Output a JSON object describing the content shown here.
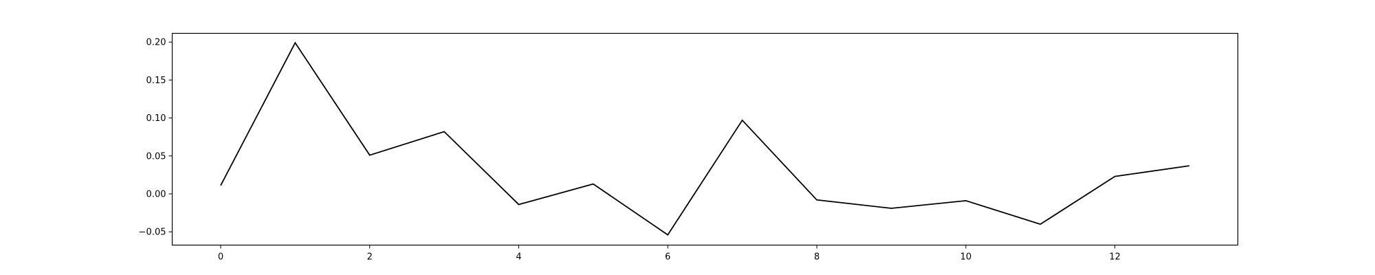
{
  "chart_data": {
    "type": "line",
    "title": "",
    "xlabel": "",
    "ylabel": "",
    "xlim": [
      -0.65,
      13.65
    ],
    "ylim": [
      -0.0675,
      0.2115
    ],
    "xticks": [
      0,
      2,
      4,
      6,
      8,
      10,
      12
    ],
    "xtick_labels": [
      "0",
      "2",
      "4",
      "6",
      "8",
      "10",
      "12"
    ],
    "yticks": [
      -0.05,
      0.0,
      0.05,
      0.1,
      0.15,
      0.2
    ],
    "ytick_labels": [
      "−0.05",
      "0.00",
      "0.05",
      "0.10",
      "0.15",
      "0.20"
    ],
    "grid": false,
    "series": [
      {
        "color": "#000000",
        "x": [
          0,
          1,
          2,
          3,
          4,
          5,
          6,
          7,
          8,
          9,
          10,
          11,
          12,
          13
        ],
        "y": [
          0.011,
          0.199,
          0.051,
          0.082,
          -0.014,
          0.013,
          -0.054,
          0.097,
          -0.008,
          -0.019,
          -0.009,
          -0.04,
          0.023,
          0.037
        ]
      }
    ]
  }
}
